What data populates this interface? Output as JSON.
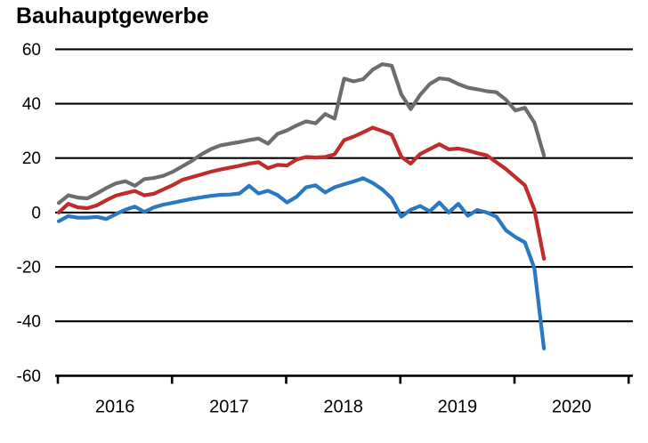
{
  "title": "Bauhauptgewerbe",
  "axes": {
    "y_labels": [
      "60",
      "40",
      "20",
      "0",
      "-20",
      "-40",
      "-60"
    ],
    "x_labels": [
      "2016",
      "2017",
      "2018",
      "2019",
      "2020"
    ]
  },
  "chart_data": {
    "type": "line",
    "title": "Bauhauptgewerbe",
    "x_unit": "month",
    "x_start": "2016-01",
    "x_end": "2020-04",
    "x_tick_labels": [
      "2016",
      "2017",
      "2018",
      "2019",
      "2020"
    ],
    "y_ticks": [
      60,
      40,
      20,
      0,
      -20,
      -40,
      -60
    ],
    "ylim": [
      -60,
      60
    ],
    "grid": "horizontal black gridlines at every 20 units",
    "legend_position": "none",
    "series": [
      {
        "name": "gray",
        "color": "#6d6d6d",
        "values": [
          3.5,
          6.3,
          5.5,
          5.2,
          7.0,
          9.0,
          10.7,
          11.5,
          9.8,
          12.3,
          12.7,
          13.5,
          15.0,
          17.0,
          19.0,
          21.4,
          23.3,
          24.7,
          25.3,
          25.9,
          26.6,
          27.2,
          25.3,
          28.9,
          30.2,
          32.0,
          33.5,
          32.8,
          36.2,
          34.5,
          49.2,
          48.2,
          49.0,
          52.5,
          54.5,
          54.0,
          43.5,
          38.0,
          43.3,
          47.2,
          49.3,
          48.9,
          47.2,
          45.9,
          45.3,
          44.6,
          44.2,
          41.5,
          37.5,
          38.5,
          33.0,
          21.0
        ]
      },
      {
        "name": "red",
        "color": "#c02b2b",
        "values": [
          0.0,
          3.2,
          1.9,
          1.6,
          2.6,
          4.5,
          6.2,
          7.1,
          7.9,
          6.3,
          6.9,
          8.5,
          10.1,
          12.0,
          13.0,
          14.0,
          15.0,
          15.8,
          16.5,
          17.2,
          18.0,
          18.5,
          16.3,
          17.5,
          17.3,
          19.5,
          20.4,
          20.2,
          20.4,
          21.4,
          26.6,
          27.9,
          29.5,
          31.2,
          30.0,
          28.6,
          20.5,
          18.0,
          21.5,
          23.3,
          25.1,
          23.2,
          23.5,
          22.8,
          21.8,
          21.0,
          18.5,
          16.0,
          13.0,
          10.0,
          1.0,
          -17.0
        ]
      },
      {
        "name": "blue",
        "color": "#2878c2",
        "values": [
          -3.2,
          -1.3,
          -1.9,
          -1.9,
          -1.6,
          -2.4,
          -0.6,
          1.0,
          2.2,
          0.2,
          1.9,
          2.9,
          3.6,
          4.3,
          5.0,
          5.6,
          6.1,
          6.5,
          6.6,
          7.0,
          9.8,
          7.0,
          8.0,
          6.4,
          3.7,
          5.8,
          9.3,
          10.0,
          7.4,
          9.3,
          10.4,
          11.4,
          12.6,
          10.9,
          8.5,
          5.2,
          -1.5,
          1.0,
          2.4,
          0.4,
          3.7,
          0.0,
          3.2,
          -1.2,
          0.9,
          0.0,
          -1.5,
          -6.5,
          -9.0,
          -11.0,
          -20.5,
          -50.0
        ]
      }
    ]
  }
}
